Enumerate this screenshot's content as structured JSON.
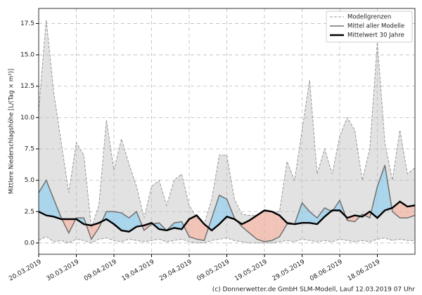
{
  "chart_data": {
    "type": "line",
    "y_label": "Mittlere Niederschlagshöhe [L/(Tag × m²)]",
    "footer": "(c) Donnerwetter.de GmbH SLM-Modell, Lauf 12.03.2019 07 Uhr",
    "x": [
      "20.03.2019",
      "22.03.2019",
      "24.03.2019",
      "26.03.2019",
      "28.03.2019",
      "30.03.2019",
      "01.04.2019",
      "03.04.2019",
      "05.04.2019",
      "07.04.2019",
      "09.04.2019",
      "11.04.2019",
      "13.04.2019",
      "15.04.2019",
      "17.04.2019",
      "19.04.2019",
      "21.04.2019",
      "23.04.2019",
      "25.04.2019",
      "27.04.2019",
      "29.04.2019",
      "01.05.2019",
      "03.05.2019",
      "05.05.2019",
      "07.05.2019",
      "09.05.2019",
      "11.05.2019",
      "13.05.2019",
      "15.05.2019",
      "17.05.2019",
      "19.05.2019",
      "21.05.2019",
      "23.05.2019",
      "25.05.2019",
      "27.05.2019",
      "29.05.2019",
      "31.05.2019",
      "02.06.2019",
      "04.06.2019",
      "06.06.2019",
      "08.06.2019",
      "10.06.2019",
      "12.06.2019",
      "14.06.2019",
      "16.06.2019",
      "18.06.2019",
      "20.06.2019",
      "22.06.2019",
      "24.06.2019",
      "26.06.2019",
      "28.06.2019"
    ],
    "series": [
      {
        "name": "Modellgrenzen",
        "color": "#999999",
        "area_color": "#e2e2e2",
        "values": [
          10.5,
          17.8,
          12.0,
          8.0,
          4.0,
          8.0,
          7.0,
          1.2,
          3.0,
          9.8,
          5.8,
          8.3,
          6.3,
          4.5,
          2.0,
          4.5,
          5.0,
          3.0,
          5.0,
          5.5,
          3.0,
          2.0,
          1.5,
          3.5,
          7.0,
          7.0,
          3.5,
          2.3,
          2.2,
          2.2,
          2.5,
          2.5,
          2.5,
          6.5,
          5.0,
          9.0,
          13.0,
          5.5,
          7.5,
          5.5,
          8.5,
          10.0,
          9.0,
          5.0,
          7.5,
          16.0,
          8.0,
          5.0,
          9.0,
          5.5,
          6.0
        ],
        "lower": [
          0.2,
          0.5,
          0.1,
          0.2,
          0.0,
          0.3,
          0.2,
          0.0,
          0.3,
          0.4,
          0.2,
          0.1,
          0.3,
          0.2,
          0.1,
          0.2,
          0.3,
          0.1,
          0.2,
          0.3,
          0.1,
          0.0,
          0.0,
          0.2,
          0.3,
          0.4,
          0.2,
          0.1,
          0.0,
          0.0,
          0.0,
          0.0,
          0.1,
          0.2,
          0.1,
          0.3,
          0.2,
          0.1,
          0.2,
          0.1,
          0.3,
          0.2,
          0.1,
          0.2,
          0.1,
          0.3,
          0.4,
          0.2,
          0.3,
          0.2,
          0.2
        ]
      },
      {
        "name": "Mittel aller Modelle",
        "color": "#707070",
        "values": [
          4.0,
          5.0,
          3.5,
          2.0,
          0.8,
          2.0,
          2.0,
          0.3,
          1.2,
          2.5,
          2.5,
          2.4,
          2.0,
          2.5,
          1.0,
          1.5,
          1.6,
          1.0,
          1.6,
          1.7,
          0.5,
          0.3,
          0.2,
          2.0,
          3.8,
          3.5,
          2.0,
          1.3,
          0.8,
          0.3,
          0.1,
          0.2,
          0.5,
          1.5,
          1.5,
          3.2,
          2.5,
          2.0,
          2.8,
          2.5,
          3.4,
          1.8,
          1.7,
          2.3,
          2.0,
          4.5,
          6.2,
          2.5,
          2.0,
          2.0,
          2.2
        ]
      },
      {
        "name": "Mittelwert 30 Jahre",
        "color": "#000000",
        "values": [
          2.5,
          2.2,
          2.1,
          1.9,
          1.9,
          1.9,
          1.5,
          1.4,
          1.6,
          1.9,
          1.5,
          1.0,
          0.9,
          1.3,
          1.4,
          1.6,
          1.1,
          1.0,
          1.2,
          1.1,
          1.9,
          2.2,
          1.5,
          1.0,
          1.5,
          2.1,
          1.9,
          1.5,
          1.8,
          2.2,
          2.6,
          2.5,
          2.2,
          1.6,
          1.5,
          1.6,
          1.6,
          1.5,
          2.1,
          2.6,
          2.6,
          2.0,
          2.2,
          2.1,
          2.5,
          2.0,
          2.6,
          2.8,
          3.3,
          2.9,
          3.0
        ]
      }
    ],
    "above_color": "#a9d6ec",
    "below_color": "#f2c4b8",
    "xlim": [
      "20.03.2019",
      "28.06.2019"
    ],
    "xticks": [
      "20.03.2019",
      "30.03.2019",
      "09.04.2019",
      "19.04.2019",
      "29.04.2019",
      "09.05.2019",
      "19.05.2019",
      "29.05.2019",
      "08.06.2019",
      "18.06.2019"
    ],
    "ylim": [
      -0.9,
      18.7
    ],
    "yticks": [
      {
        "value": 0,
        "label": "0.0"
      },
      {
        "value": 2.5,
        "label": "2.5"
      },
      {
        "value": 5,
        "label": "5.0"
      },
      {
        "value": 7.5,
        "label": "7.5"
      },
      {
        "value": 10,
        "label": "10.0"
      },
      {
        "value": 12.5,
        "label": "12.5"
      },
      {
        "value": 15,
        "label": "15.0"
      },
      {
        "value": 17.5,
        "label": "17.5"
      }
    ],
    "grid": true,
    "legend": "upper right"
  }
}
